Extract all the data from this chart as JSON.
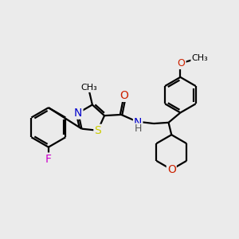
{
  "bg_color": "#ebebeb",
  "bond_color": "#000000",
  "bond_width": 1.6,
  "atom_colors": {
    "N": "#0000cc",
    "O": "#cc2200",
    "S": "#cccc00",
    "F": "#cc00cc",
    "C": "#000000"
  },
  "font_size": 9,
  "fig_size": [
    3.0,
    3.0
  ],
  "dpi": 100,
  "xlim": [
    0,
    12
  ],
  "ylim": [
    0,
    12
  ]
}
